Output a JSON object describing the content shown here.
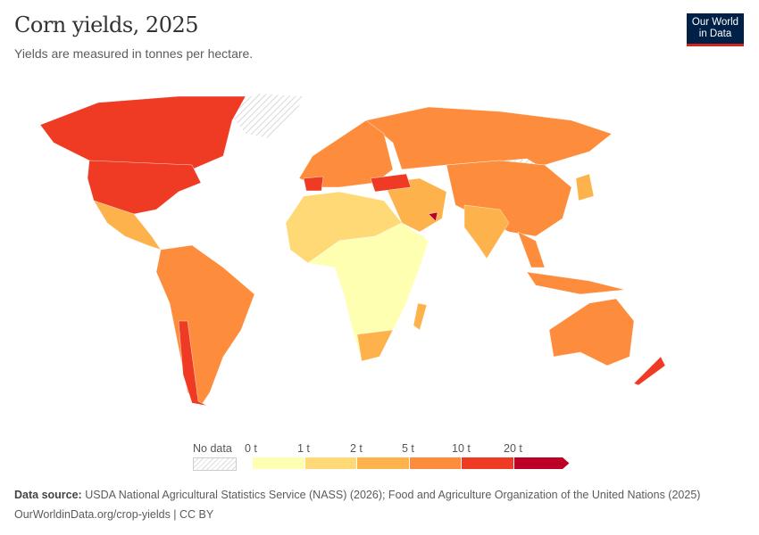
{
  "header": {
    "title": "Corn yields, 2025",
    "subtitle": "Yields are measured in tonnes per hectare."
  },
  "logo": {
    "line1": "Our World",
    "line2": "in Data"
  },
  "legend": {
    "no_data_label": "No data",
    "ticks": [
      "0 t",
      "1 t",
      "2 t",
      "5 t",
      "10 t",
      "20 t"
    ],
    "colors": [
      "#ffffb2",
      "#fed976",
      "#feb24c",
      "#fd8d3c",
      "#ef3b24",
      "#bd0026"
    ],
    "no_data_pattern": "hatched-gray"
  },
  "footer": {
    "source_label": "Data source:",
    "source_text": "USDA National Agricultural Statistics Service (NASS) (2026); Food and Agriculture Organization of the United Nations (2025)",
    "link": "OurWorldinData.org/crop-yields | CC BY"
  }
}
